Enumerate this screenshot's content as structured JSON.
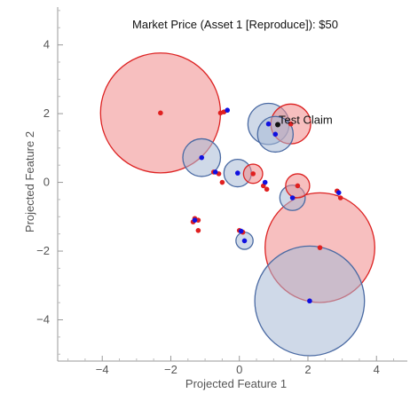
{
  "chart_data": {
    "type": "scatter",
    "title": "Market Price (Asset 1 [Reproduce]): $50",
    "xlabel": "Projected Feature 1",
    "ylabel": "Projected Feature 2",
    "xlim": [
      -5.3,
      4.9
    ],
    "ylim": [
      -5.2,
      5.1
    ],
    "xticks": [
      -4,
      -2,
      0,
      2,
      4
    ],
    "yticks": [
      -4,
      -2,
      0,
      2,
      4
    ],
    "xtick_labels": [
      "−4",
      "−2",
      "0",
      "2",
      "4"
    ],
    "ytick_labels": [
      "−4",
      "−2",
      "0",
      "2",
      "4"
    ],
    "grid": false,
    "colors": {
      "red_fill": "#f08a8a",
      "red_stroke": "#dd2222",
      "red_point": "#e02020",
      "blue_fill": "#a7b9d6",
      "blue_stroke": "#4a6aa3",
      "blue_point": "#1010e0",
      "claim_point": "#111111"
    },
    "series": [
      {
        "color_key": "red",
        "points": [
          {
            "x": -2.3,
            "y": 2.02,
            "r": 1.75
          },
          {
            "x": 1.5,
            "y": 1.7,
            "r": 0.58
          },
          {
            "x": 0.4,
            "y": 0.25,
            "r": 0.28
          },
          {
            "x": 1.7,
            "y": -0.1,
            "r": 0.35
          },
          {
            "x": 2.35,
            "y": -1.9,
            "r": 1.6
          },
          {
            "x": -0.45,
            "y": 2.05,
            "r": 0
          },
          {
            "x": -0.55,
            "y": 2.02,
            "r": 0
          },
          {
            "x": -0.75,
            "y": 0.3,
            "r": 0
          },
          {
            "x": -0.6,
            "y": 0.25,
            "r": 0
          },
          {
            "x": -0.5,
            "y": 0.0,
            "r": 0
          },
          {
            "x": 0.7,
            "y": -0.1,
            "r": 0
          },
          {
            "x": 0.8,
            "y": -0.2,
            "r": 0
          },
          {
            "x": 2.85,
            "y": -0.25,
            "r": 0
          },
          {
            "x": 2.95,
            "y": -0.45,
            "r": 0
          },
          {
            "x": -1.3,
            "y": -1.05,
            "r": 0
          },
          {
            "x": -1.35,
            "y": -1.15,
            "r": 0
          },
          {
            "x": -1.2,
            "y": -1.1,
            "r": 0
          },
          {
            "x": -1.2,
            "y": -1.4,
            "r": 0
          },
          {
            "x": 0.0,
            "y": -1.4,
            "r": 0
          },
          {
            "x": 0.1,
            "y": -1.45,
            "r": 0
          }
        ]
      },
      {
        "color_key": "blue",
        "points": [
          {
            "x": 2.05,
            "y": -3.45,
            "r": 1.6
          },
          {
            "x": 0.85,
            "y": 1.7,
            "r": 0.6
          },
          {
            "x": 1.05,
            "y": 1.4,
            "r": 0.52
          },
          {
            "x": -1.1,
            "y": 0.72,
            "r": 0.55
          },
          {
            "x": -0.05,
            "y": 0.27,
            "r": 0.4
          },
          {
            "x": 1.55,
            "y": -0.45,
            "r": 0.37
          },
          {
            "x": 0.15,
            "y": -1.7,
            "r": 0.25
          },
          {
            "x": -0.35,
            "y": 2.1,
            "r": 0
          },
          {
            "x": -0.7,
            "y": 0.3,
            "r": 0
          },
          {
            "x": 0.75,
            "y": 0.0,
            "r": 0
          },
          {
            "x": 2.9,
            "y": -0.3,
            "r": 0
          },
          {
            "x": -1.3,
            "y": -1.1,
            "r": 0
          },
          {
            "x": 0.05,
            "y": -1.42,
            "r": 0
          }
        ]
      }
    ],
    "claim": {
      "x": 1.12,
      "y": 1.68,
      "label": "Test Claim"
    }
  }
}
